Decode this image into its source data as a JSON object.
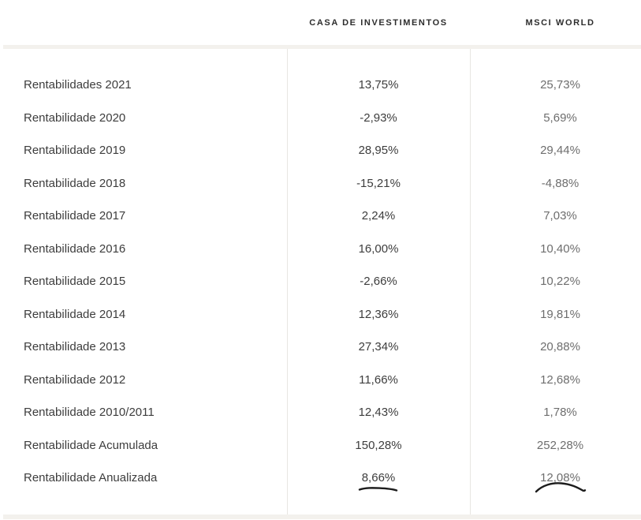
{
  "chart_data": {
    "type": "table",
    "columns": [
      "",
      "CASA DE INVESTIMENTOS",
      "MSCI WORLD"
    ],
    "rows": [
      {
        "label": "Rentabilidades 2021",
        "casa": "13,75%",
        "msci": "25,73%"
      },
      {
        "label": "Rentabilidade 2020",
        "casa": "-2,93%",
        "msci": "5,69%"
      },
      {
        "label": "Rentabilidade 2019",
        "casa": "28,95%",
        "msci": "29,44%"
      },
      {
        "label": "Rentabilidade 2018",
        "casa": "-15,21%",
        "msci": "-4,88%"
      },
      {
        "label": "Rentabilidade 2017",
        "casa": "2,24%",
        "msci": "7,03%"
      },
      {
        "label": "Rentabilidade 2016",
        "casa": "16,00%",
        "msci": "10,40%"
      },
      {
        "label": "Rentabilidade 2015",
        "casa": "-2,66%",
        "msci": "10,22%"
      },
      {
        "label": "Rentabilidade 2014",
        "casa": "12,36%",
        "msci": "19,81%"
      },
      {
        "label": "Rentabilidade 2013",
        "casa": "27,34%",
        "msci": "20,88%"
      },
      {
        "label": "Rentabilidade 2012",
        "casa": "11,66%",
        "msci": "12,68%"
      },
      {
        "label": "Rentabilidade 2010/2011",
        "casa": "12,43%",
        "msci": "1,78%"
      },
      {
        "label": "Rentabilidade Acumulada",
        "casa": "150,28%",
        "msci": "252,28%"
      },
      {
        "label": "Rentabilidade Anualizada",
        "casa": "8,66%",
        "msci": "12,08%",
        "casa_annotation": "wavy-underline",
        "msci_annotation": "arc-underline"
      }
    ],
    "annotations": [
      "hand-drawn wavy underline beneath 8,66%",
      "hand-drawn arc beneath 12,08%"
    ],
    "layout_hints": {
      "column_dividers": true,
      "header_separator_band": true,
      "footer_band": true
    }
  },
  "colors": {
    "label_text": "#3d3d3d",
    "casa_value_text": "#3d3d3d",
    "msci_value_text": "#6e6e6e",
    "header_text": "#2d2d2d",
    "divider": "#e8e6e2",
    "band": "#f3f1ed",
    "annotation_ink": "#1c1c1c",
    "background": "#ffffff"
  }
}
